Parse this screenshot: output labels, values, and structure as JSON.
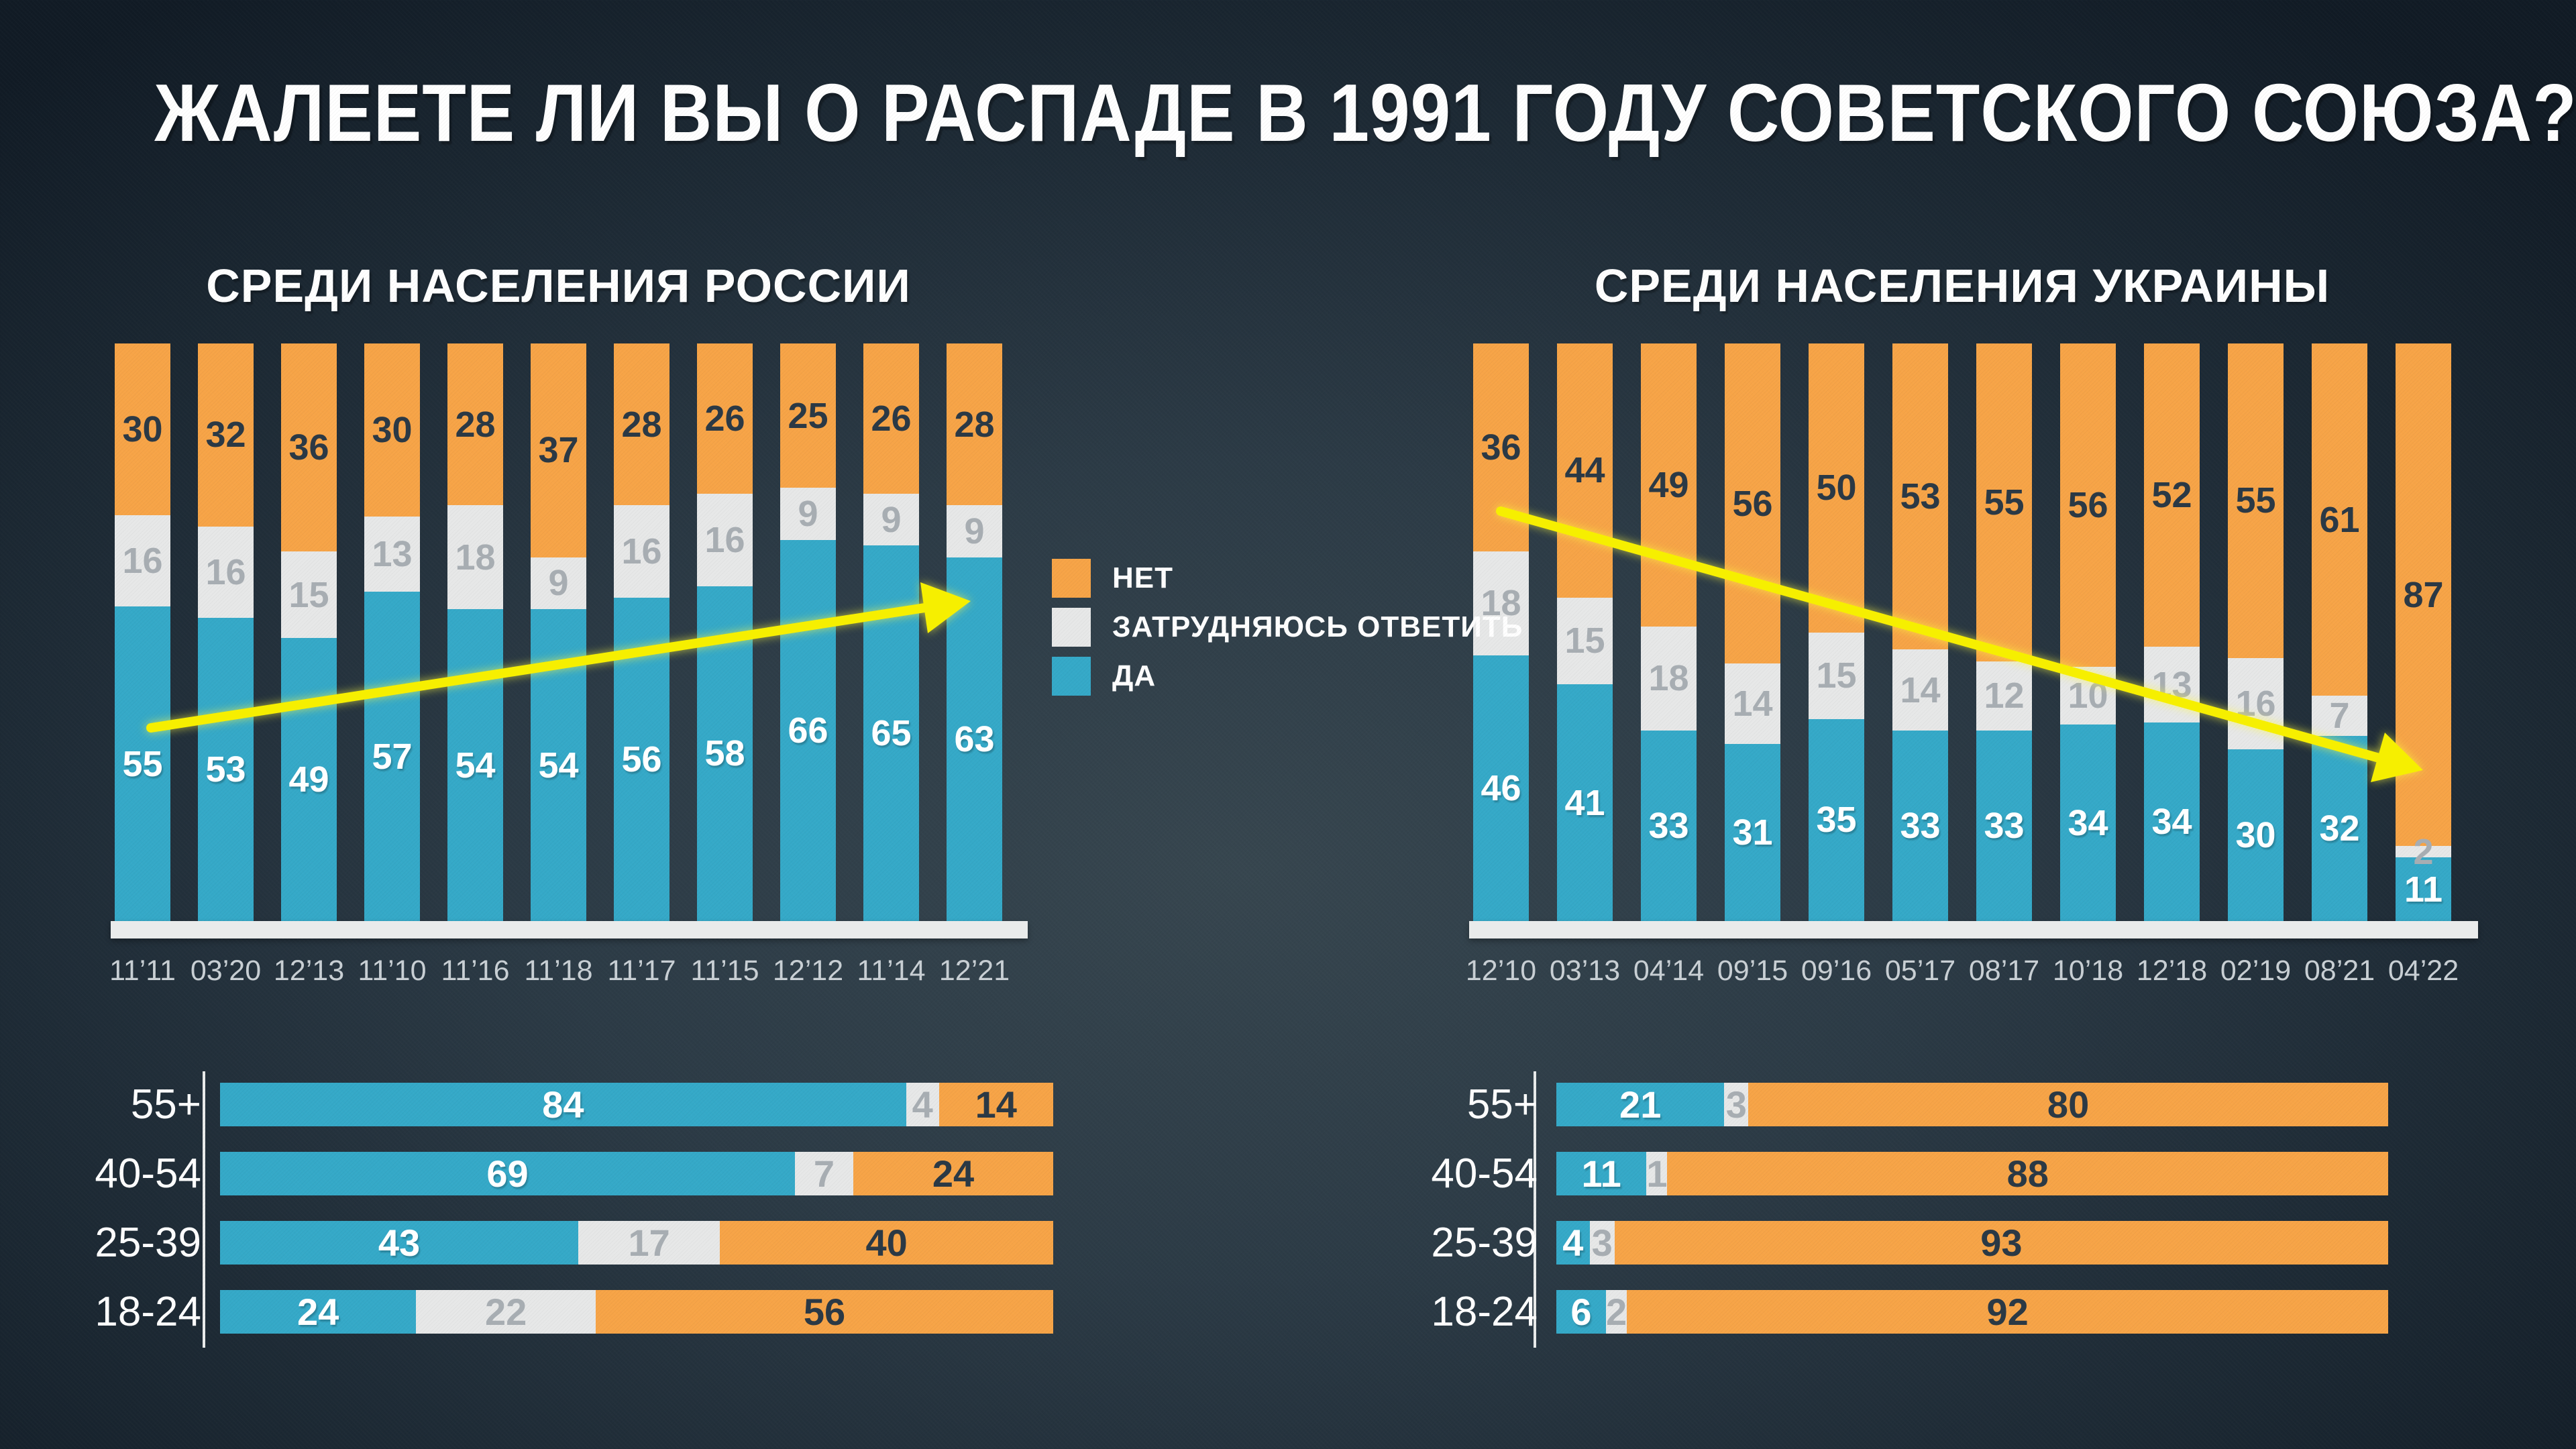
{
  "title": "ЖАЛЕЕТЕ ЛИ ВЫ О РАСПАДЕ В 1991 ГОДУ СОВЕТСКОГО СОЮЗА?",
  "legend": {
    "no": "НЕТ",
    "dk": "ЗАТРУДНЯЮСЬ ОТВЕТИТЬ",
    "yes": "ДА"
  },
  "colors": {
    "no": "#F7A447",
    "dk": "#E7E8E8",
    "yes": "#35A9C8",
    "background_center": "#36454F",
    "background_edge": "#111B25",
    "arrow": "#F6EF00",
    "label_on_no": "#2B3945",
    "label_on_dk": "#A7ADB2",
    "label_on_yes": "#FFFFFF",
    "axis_label": "#C9D0D5",
    "baseline": "#E9EBEB"
  },
  "chart_data": [
    {
      "type": "bar",
      "stacked": true,
      "orientation": "vertical",
      "title": "СРЕДИ НАСЕЛЕНИЯ РОССИИ",
      "ylim": [
        0,
        100
      ],
      "grid": false,
      "categories": [
        "11’11",
        "03’20",
        "12’13",
        "11’10",
        "11’16",
        "11’18",
        "11’17",
        "11’15",
        "12’12",
        "11’14",
        "12’21"
      ],
      "series": [
        {
          "name": "НЕТ",
          "key": "no",
          "values": [
            30,
            32,
            36,
            30,
            28,
            37,
            28,
            26,
            25,
            26,
            28
          ]
        },
        {
          "name": "ЗАТРУДНЯЮСЬ ОТВЕТИТЬ",
          "key": "dk",
          "values": [
            16,
            16,
            15,
            13,
            18,
            9,
            16,
            16,
            9,
            9,
            9
          ]
        },
        {
          "name": "ДА",
          "key": "yes",
          "values": [
            55,
            53,
            49,
            57,
            54,
            54,
            56,
            58,
            66,
            65,
            63
          ]
        }
      ],
      "annotation": "yellow trend arrow rising left-to-right"
    },
    {
      "type": "bar",
      "stacked": true,
      "orientation": "vertical",
      "title": "СРЕДИ НАСЕЛЕНИЯ УКРАИНЫ",
      "ylim": [
        0,
        100
      ],
      "grid": false,
      "categories": [
        "12’10",
        "03’13",
        "04’14",
        "09’15",
        "09’16",
        "05’17",
        "08’17",
        "10’18",
        "12’18",
        "02’19",
        "08’21",
        "04’22"
      ],
      "series": [
        {
          "name": "НЕТ",
          "key": "no",
          "values": [
            36,
            44,
            49,
            56,
            50,
            53,
            55,
            56,
            52,
            55,
            61,
            87
          ]
        },
        {
          "name": "ЗАТРУДНЯЮСЬ ОТВЕТИТЬ",
          "key": "dk",
          "values": [
            18,
            15,
            18,
            14,
            15,
            14,
            12,
            10,
            13,
            16,
            7,
            2
          ]
        },
        {
          "name": "ДА",
          "key": "yes",
          "values": [
            46,
            41,
            33,
            31,
            35,
            33,
            33,
            34,
            34,
            30,
            32,
            11
          ]
        }
      ],
      "annotation": "yellow trend arrow falling left-to-right"
    },
    {
      "type": "bar",
      "stacked": true,
      "orientation": "horizontal",
      "title": "",
      "position": "bottom-left",
      "categories": [
        "55+",
        "40-54",
        "25-39",
        "18-24"
      ],
      "series": [
        {
          "name": "ДА",
          "key": "yes",
          "values": [
            84,
            69,
            43,
            24
          ]
        },
        {
          "name": "ЗАТРУДНЯЮСЬ ОТВЕТИТЬ",
          "key": "dk",
          "values": [
            4,
            7,
            17,
            22
          ]
        },
        {
          "name": "НЕТ",
          "key": "no",
          "values": [
            14,
            24,
            40,
            56
          ]
        }
      ]
    },
    {
      "type": "bar",
      "stacked": true,
      "orientation": "horizontal",
      "title": "",
      "position": "bottom-right",
      "categories": [
        "55+",
        "40-54",
        "25-39",
        "18-24"
      ],
      "series": [
        {
          "name": "ДА",
          "key": "yes",
          "values": [
            21,
            11,
            4,
            6
          ]
        },
        {
          "name": "ЗАТРУДНЯЮСЬ ОТВЕТИТЬ",
          "key": "dk",
          "values": [
            3,
            1,
            3,
            2
          ]
        },
        {
          "name": "НЕТ",
          "key": "no",
          "values": [
            80,
            88,
            93,
            92
          ]
        }
      ]
    }
  ]
}
